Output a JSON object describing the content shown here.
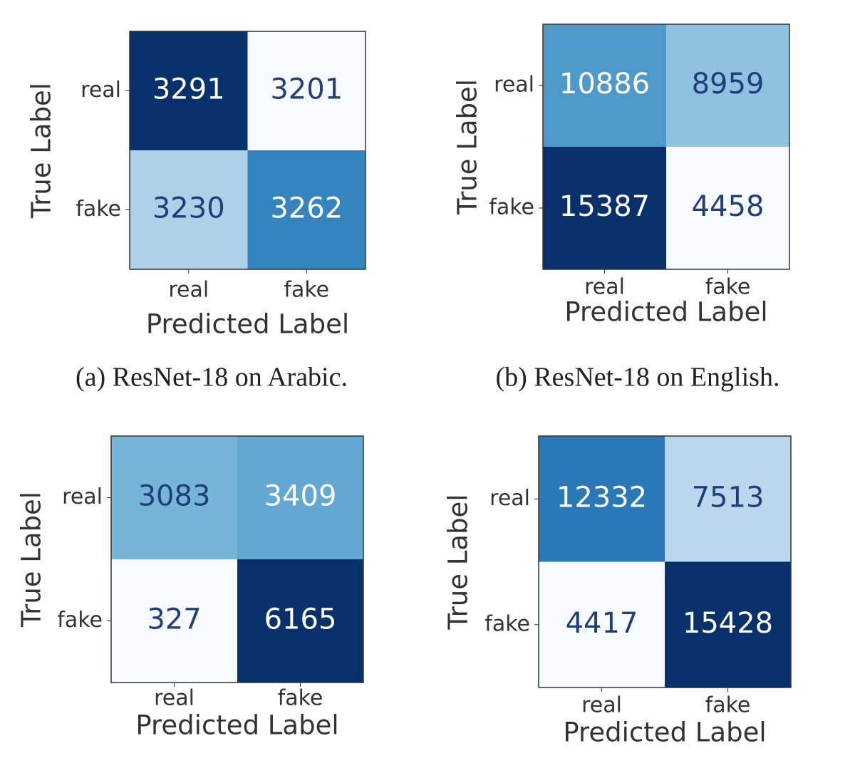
{
  "chart_data": [
    {
      "type": "heatmap",
      "caption": "(a) ResNet-18 on Arabic.",
      "x_label": "Predicted Label",
      "y_label": "True Label",
      "x_categories": [
        "real",
        "fake"
      ],
      "y_categories": [
        "real",
        "fake"
      ],
      "colormap": "Blues",
      "values": [
        [
          3291,
          3201
        ],
        [
          3230,
          3262
        ]
      ]
    },
    {
      "type": "heatmap",
      "caption": "(b) ResNet-18 on English.",
      "x_label": "Predicted Label",
      "y_label": "True Label",
      "x_categories": [
        "real",
        "fake"
      ],
      "y_categories": [
        "real",
        "fake"
      ],
      "colormap": "Blues",
      "values": [
        [
          10886,
          8959
        ],
        [
          15387,
          4458
        ]
      ]
    },
    {
      "type": "heatmap",
      "x_label": "Predicted Label",
      "y_label": "True Label",
      "x_categories": [
        "real",
        "fake"
      ],
      "y_categories": [
        "real",
        "fake"
      ],
      "colormap": "Blues",
      "values": [
        [
          3083,
          3409
        ],
        [
          327,
          6165
        ]
      ]
    },
    {
      "type": "heatmap",
      "x_label": "Predicted Label",
      "y_label": "True Label",
      "x_categories": [
        "real",
        "fake"
      ],
      "y_categories": [
        "real",
        "fake"
      ],
      "colormap": "Blues",
      "values": [
        [
          12332,
          7513
        ],
        [
          4417,
          15428
        ]
      ]
    }
  ]
}
